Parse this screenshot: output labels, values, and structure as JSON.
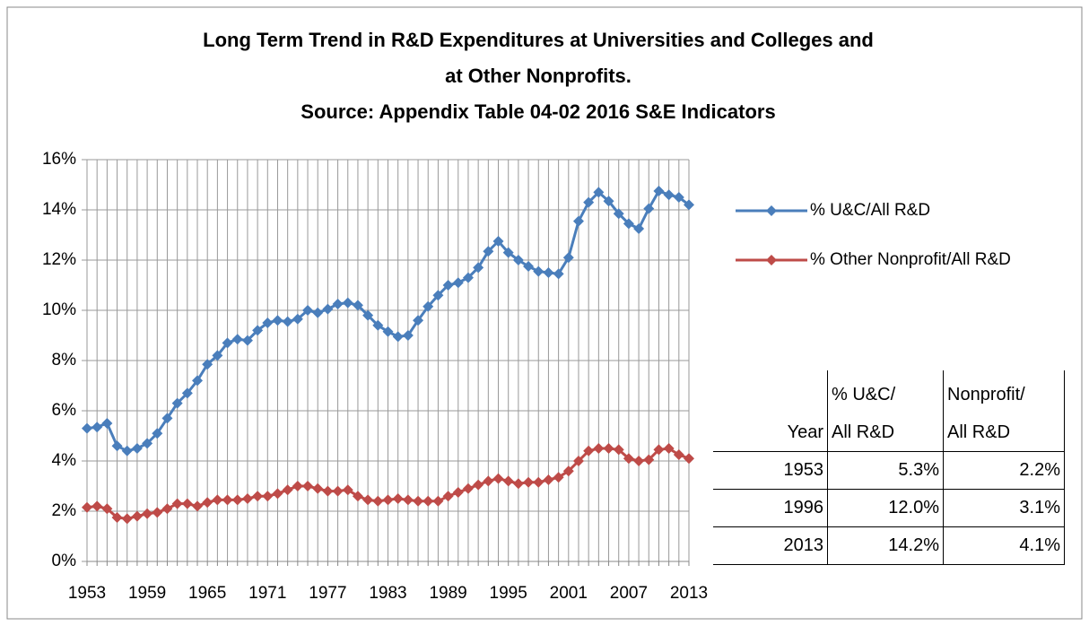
{
  "chart_data": {
    "type": "line",
    "title_lines": [
      "Long Term Trend in R&D Expenditures at Universities and Colleges and",
      "at Other Nonprofits.",
      "Source: Appendix Table 04-02 2016 S&E Indicators"
    ],
    "categories": [
      "1953",
      null,
      null,
      null,
      null,
      null,
      "1959",
      null,
      null,
      null,
      null,
      null,
      "1965",
      null,
      null,
      null,
      null,
      null,
      "1971",
      null,
      null,
      null,
      null,
      null,
      "1977",
      null,
      null,
      null,
      null,
      null,
      "1983",
      null,
      null,
      null,
      null,
      null,
      "1989",
      null,
      null,
      null,
      null,
      null,
      "1995",
      null,
      null,
      null,
      null,
      null,
      "2001",
      null,
      null,
      null,
      null,
      null,
      "2007",
      null,
      null,
      null,
      null,
      null,
      "2013"
    ],
    "series": [
      {
        "name": "% U&C/All R&D",
        "color": "#4a7ebb",
        "values": [
          5.3,
          5.35,
          5.5,
          4.6,
          4.4,
          4.5,
          4.7,
          5.1,
          5.7,
          6.3,
          6.7,
          7.2,
          7.85,
          8.2,
          8.7,
          8.85,
          8.8,
          9.2,
          9.5,
          9.6,
          9.55,
          9.65,
          10.0,
          9.9,
          10.05,
          10.25,
          10.3,
          10.2,
          9.8,
          9.4,
          9.15,
          8.95,
          9.0,
          9.6,
          10.15,
          10.6,
          11.0,
          11.1,
          11.3,
          11.7,
          12.35,
          12.75,
          12.3,
          12.0,
          11.75,
          11.55,
          11.5,
          11.45,
          12.1,
          13.55,
          14.3,
          14.7,
          14.35,
          13.85,
          13.45,
          13.25,
          14.05,
          14.75,
          14.6,
          14.5,
          14.2
        ]
      },
      {
        "name": "% Other Nonprofit/All R&D",
        "color": "#be4b48",
        "values": [
          2.15,
          2.2,
          2.1,
          1.75,
          1.7,
          1.8,
          1.9,
          1.95,
          2.1,
          2.3,
          2.3,
          2.2,
          2.35,
          2.45,
          2.45,
          2.45,
          2.5,
          2.6,
          2.6,
          2.7,
          2.85,
          3.0,
          3.0,
          2.9,
          2.8,
          2.8,
          2.85,
          2.6,
          2.45,
          2.4,
          2.45,
          2.5,
          2.45,
          2.4,
          2.4,
          2.4,
          2.6,
          2.75,
          2.9,
          3.05,
          3.2,
          3.3,
          3.2,
          3.1,
          3.15,
          3.15,
          3.25,
          3.35,
          3.6,
          4.0,
          4.4,
          4.5,
          4.5,
          4.45,
          4.1,
          4.0,
          4.05,
          4.45,
          4.5,
          4.25,
          4.1
        ]
      }
    ],
    "ylim": [
      0,
      16
    ],
    "yticks": [
      {
        "value": 0,
        "label": "0%"
      },
      {
        "value": 2,
        "label": "2%"
      },
      {
        "value": 4,
        "label": "4%"
      },
      {
        "value": 6,
        "label": "6%"
      },
      {
        "value": 8,
        "label": "8%"
      },
      {
        "value": 10,
        "label": "10%"
      },
      {
        "value": 12,
        "label": "12%"
      },
      {
        "value": 14,
        "label": "14%"
      },
      {
        "value": 16,
        "label": "16%"
      }
    ],
    "grid": true,
    "legend": "right"
  },
  "table": {
    "header": [
      [
        "Year"
      ],
      [
        "% U&C/",
        "All R&D"
      ],
      [
        "Nonprofit/",
        "All R&D"
      ]
    ],
    "rows": [
      [
        "1953",
        "5.3%",
        "2.2%"
      ],
      [
        "1996",
        "12.0%",
        "3.1%"
      ],
      [
        "2013",
        "14.2%",
        "4.1%"
      ]
    ]
  }
}
